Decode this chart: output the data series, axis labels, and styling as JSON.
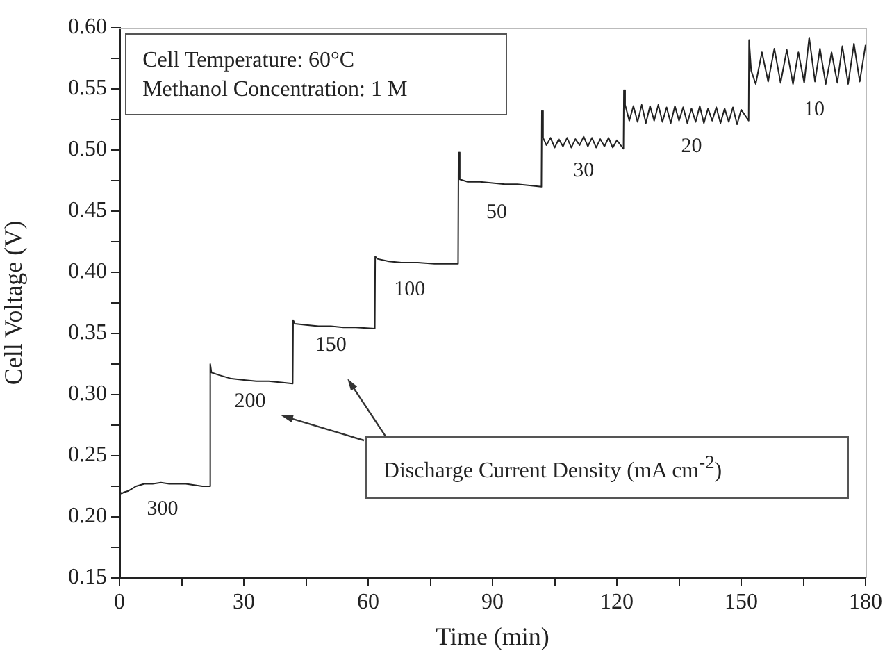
{
  "chart_data": {
    "type": "line",
    "xlabel": "Time (min)",
    "ylabel": "Cell Voltage (V)",
    "xlim": [
      0,
      180
    ],
    "xticks": [
      0,
      {
        "value": 15,
        "label": null
      },
      30,
      {
        "value": 45,
        "label": null
      },
      60,
      {
        "value": 75,
        "label": null
      },
      90,
      {
        "value": 105,
        "label": null
      },
      120,
      {
        "value": 135,
        "label": null
      },
      150,
      {
        "value": 165,
        "label": null
      },
      180
    ],
    "ylim": [
      0.15,
      0.6
    ],
    "yticks": [
      {
        "value": 0.15,
        "label": "0.15"
      },
      {
        "value": 0.175,
        "label": null
      },
      {
        "value": 0.2,
        "label": "0.20"
      },
      {
        "value": 0.225,
        "label": null
      },
      {
        "value": 0.25,
        "label": "0.25"
      },
      {
        "value": 0.275,
        "label": null
      },
      {
        "value": 0.3,
        "label": "0.30"
      },
      {
        "value": 0.325,
        "label": null
      },
      {
        "value": 0.35,
        "label": "0.35"
      },
      {
        "value": 0.375,
        "label": null
      },
      {
        "value": 0.4,
        "label": "0.40"
      },
      {
        "value": 0.425,
        "label": null
      },
      {
        "value": 0.45,
        "label": "0.45"
      },
      {
        "value": 0.475,
        "label": null
      },
      {
        "value": 0.5,
        "label": "0.50"
      },
      {
        "value": 0.525,
        "label": null
      },
      {
        "value": 0.55,
        "label": "0.55"
      },
      {
        "value": 0.575,
        "label": null
      },
      {
        "value": 0.6,
        "label": "0.60"
      }
    ],
    "marker": "none",
    "line_style": "solid",
    "series": [
      {
        "color": "#222222",
        "x": [
          0,
          0.5,
          1,
          2,
          3,
          4,
          5,
          6,
          8,
          10,
          12,
          14,
          16,
          18,
          20,
          21.8,
          21.9,
          22.2,
          24,
          27,
          30,
          33,
          36,
          39,
          41.8,
          41.9,
          42.3,
          45,
          48,
          51,
          54,
          57,
          61.6,
          61.7,
          62.2,
          65,
          68,
          72,
          76,
          81.7,
          81.8,
          82.1,
          84,
          87,
          90,
          93,
          96,
          99,
          101.8,
          101.9,
          102.2,
          103,
          104,
          105,
          106,
          107,
          108,
          109,
          110,
          111,
          112,
          113,
          114,
          115,
          116,
          117,
          118,
          119,
          120,
          121.6,
          121.7,
          122,
          123,
          124,
          125,
          126,
          127,
          128,
          129,
          130,
          131,
          132,
          133,
          134,
          135,
          136,
          137,
          138,
          139,
          140,
          141,
          142,
          143,
          144,
          145,
          146,
          147,
          148,
          149,
          150,
          151.8,
          151.9,
          152.4,
          153.5,
          155,
          156.5,
          158,
          159.5,
          161,
          162.5,
          163.8,
          165.2,
          166.4,
          167.8,
          169,
          170.4,
          171.8,
          173.2,
          174.4,
          175.8,
          177.2,
          178.6,
          180
        ],
        "values": [
          0.221,
          0.219,
          0.22,
          0.221,
          0.223,
          0.225,
          0.226,
          0.227,
          0.227,
          0.228,
          0.227,
          0.227,
          0.227,
          0.226,
          0.225,
          0.225,
          0.325,
          0.318,
          0.316,
          0.313,
          0.312,
          0.311,
          0.311,
          0.31,
          0.309,
          0.361,
          0.358,
          0.357,
          0.356,
          0.356,
          0.355,
          0.355,
          0.354,
          0.413,
          0.411,
          0.409,
          0.408,
          0.408,
          0.407,
          0.407,
          0.498,
          0.476,
          0.474,
          0.474,
          0.473,
          0.472,
          0.472,
          0.471,
          0.47,
          0.532,
          0.51,
          0.504,
          0.51,
          0.502,
          0.509,
          0.503,
          0.51,
          0.502,
          0.509,
          0.504,
          0.511,
          0.503,
          0.51,
          0.502,
          0.509,
          0.503,
          0.51,
          0.502,
          0.508,
          0.501,
          0.549,
          0.537,
          0.524,
          0.536,
          0.523,
          0.537,
          0.522,
          0.536,
          0.524,
          0.537,
          0.523,
          0.535,
          0.522,
          0.536,
          0.524,
          0.535,
          0.522,
          0.534,
          0.523,
          0.536,
          0.522,
          0.534,
          0.524,
          0.535,
          0.522,
          0.534,
          0.523,
          0.535,
          0.521,
          0.533,
          0.524,
          0.59,
          0.565,
          0.554,
          0.58,
          0.556,
          0.583,
          0.555,
          0.582,
          0.554,
          0.58,
          0.555,
          0.592,
          0.556,
          0.583,
          0.554,
          0.58,
          0.555,
          0.585,
          0.554,
          0.587,
          0.556,
          0.586
        ]
      }
    ],
    "annotations": [
      "Cell Temperature: 60°C\nMethanol Concentration: 1 M",
      "Discharge Current Density (mA cm$^{-2}$)",
      "300",
      "200",
      "150",
      "100",
      "50",
      "30",
      "20",
      "10"
    ]
  }
}
